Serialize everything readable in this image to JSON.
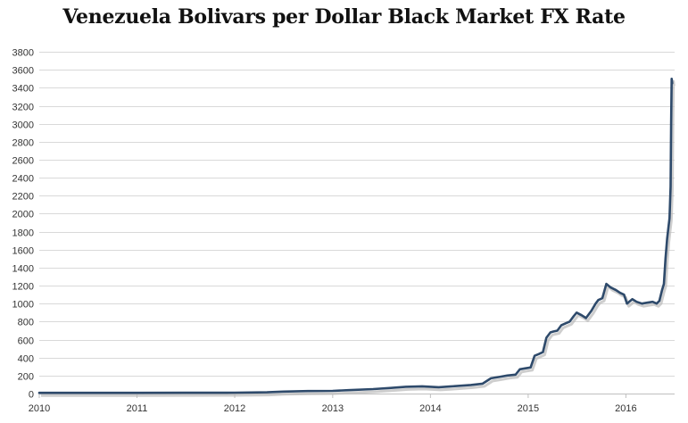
{
  "chart_data": {
    "type": "line",
    "title": "Venezuela Bolivars per Dollar Black Market FX Rate",
    "xlabel": "",
    "ylabel": "",
    "grid": true,
    "legend": "none",
    "line_color": "#2e4a6b",
    "shadow_color": "#b9b9b9",
    "grid_color": "#d9d9d9",
    "ylim": [
      0,
      3900
    ],
    "yticks": [
      0,
      200,
      400,
      600,
      800,
      1000,
      1200,
      1400,
      1600,
      1800,
      2000,
      2200,
      2400,
      2600,
      2800,
      3000,
      3200,
      3400,
      3600,
      3800
    ],
    "xlim": [
      "2010-01-01",
      "2016-07-01"
    ],
    "xticks": [
      "2010",
      "2011",
      "2012",
      "2013",
      "2014",
      "2015",
      "2016"
    ],
    "series": [
      {
        "x": [
          "2010-01-01",
          "2010-07-01",
          "2011-01-01",
          "2011-07-01",
          "2012-01-01",
          "2012-05-01",
          "2012-07-01",
          "2012-10-01",
          "2013-01-01",
          "2013-03-01",
          "2013-06-01",
          "2013-08-01",
          "2013-10-01",
          "2013-12-01",
          "2014-02-01",
          "2014-03-15",
          "2014-06-01",
          "2014-07-15",
          "2014-08-15",
          "2014-09-15",
          "2014-10-15",
          "2014-11-15",
          "2014-12-01",
          "2014-12-20",
          "2015-01-10",
          "2015-01-25",
          "2015-02-10",
          "2015-02-25",
          "2015-03-10",
          "2015-03-25",
          "2015-04-05",
          "2015-04-20",
          "2015-05-05",
          "2015-05-20",
          "2015-06-05",
          "2015-06-20",
          "2015-07-01",
          "2015-07-20",
          "2015-08-05",
          "2015-08-25",
          "2015-09-10",
          "2015-09-20",
          "2015-10-05",
          "2015-10-20",
          "2015-11-05",
          "2015-11-25",
          "2015-12-10",
          "2015-12-25",
          "2016-01-05",
          "2016-01-25",
          "2016-02-10",
          "2016-03-01",
          "2016-03-20",
          "2016-04-10",
          "2016-04-25",
          "2016-05-05",
          "2016-05-15",
          "2016-05-22",
          "2016-05-28",
          "2016-06-03",
          "2016-06-08",
          "2016-06-12",
          "2016-06-16",
          "2016-06-18",
          "2016-06-20",
          "2016-06-22"
        ],
        "y": [
          8,
          8,
          8,
          9,
          10,
          14,
          22,
          28,
          30,
          38,
          50,
          62,
          75,
          80,
          70,
          78,
          95,
          110,
          170,
          185,
          200,
          210,
          270,
          280,
          290,
          420,
          440,
          460,
          620,
          680,
          690,
          700,
          760,
          780,
          800,
          860,
          900,
          870,
          840,
          920,
          1000,
          1040,
          1060,
          1220,
          1180,
          1150,
          1120,
          1100,
          1000,
          1050,
          1020,
          1000,
          1010,
          1020,
          1000,
          1030,
          1150,
          1220,
          1500,
          1720,
          1850,
          1950,
          2300,
          3000,
          3500,
          3450
        ]
      }
    ]
  }
}
